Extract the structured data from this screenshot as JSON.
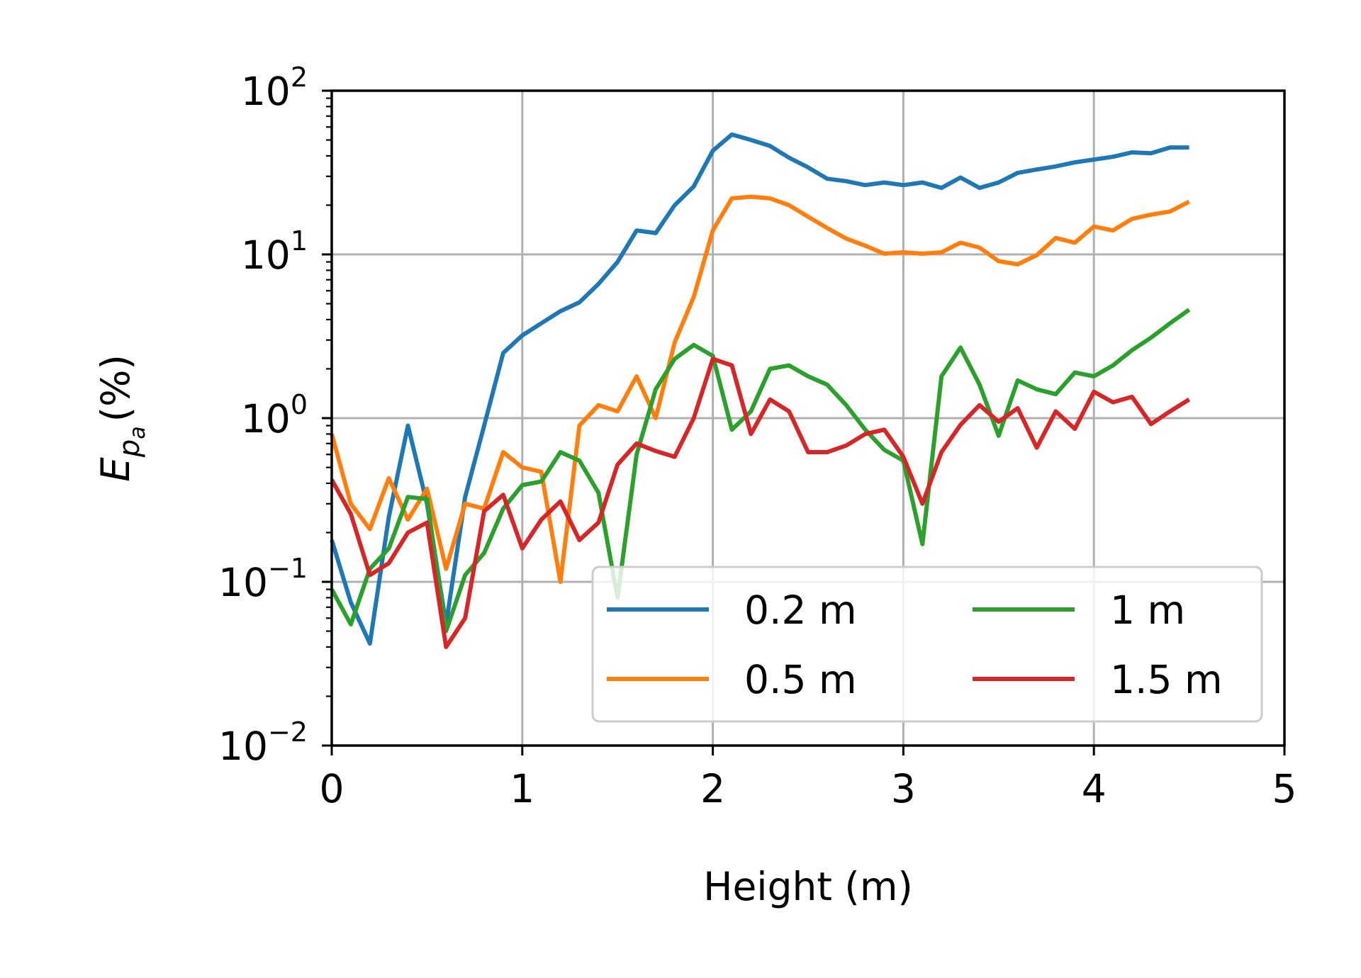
{
  "chart_data": {
    "type": "line",
    "xlabel": "Height (m)",
    "ylabel": {
      "base": "E",
      "sub": "p",
      "subsub": "a",
      "unit": "(%)"
    },
    "xlim": [
      0,
      5
    ],
    "ylim": [
      0.01,
      100
    ],
    "yscale": "log",
    "grid": true,
    "x_ticks": [
      "0",
      "1",
      "2",
      "3",
      "4",
      "5"
    ],
    "y_ticks": [
      {
        "base": "10",
        "exp": "−2",
        "value": 0.01
      },
      {
        "base": "10",
        "exp": "−1",
        "value": 0.1
      },
      {
        "base": "10",
        "exp": "0",
        "value": 1
      },
      {
        "base": "10",
        "exp": "1",
        "value": 10
      },
      {
        "base": "10",
        "exp": "2",
        "value": 100
      }
    ],
    "legend": {
      "placement": "lower-right",
      "columns": 2
    },
    "x": [
      0,
      0.1,
      0.2,
      0.3,
      0.4,
      0.5,
      0.6,
      0.7,
      0.8,
      0.9,
      1.0,
      1.1,
      1.2,
      1.3,
      1.4,
      1.5,
      1.6,
      1.7,
      1.8,
      1.9,
      2.0,
      2.1,
      2.2,
      2.3,
      2.4,
      2.5,
      2.6,
      2.7,
      2.8,
      2.9,
      3.0,
      3.1,
      3.2,
      3.3,
      3.4,
      3.5,
      3.6,
      3.7,
      3.8,
      3.9,
      4.0,
      4.1,
      4.2,
      4.3,
      4.4,
      4.5
    ],
    "series": [
      {
        "name": "0.2 m",
        "color": "#1f77b4",
        "values": [
          0.18,
          0.075,
          0.042,
          0.25,
          0.9,
          0.3,
          0.055,
          0.33,
          0.9,
          2.5,
          3.2,
          3.8,
          4.5,
          5.1,
          6.6,
          9.0,
          14,
          13.5,
          20,
          26,
          43,
          54,
          50,
          46,
          39,
          34,
          29,
          28,
          26.5,
          27.5,
          26.5,
          27.5,
          25.5,
          29.5,
          25.5,
          27.5,
          31.5,
          33,
          34.5,
          36.5,
          38,
          39.5,
          42,
          41.5,
          45,
          45
        ]
      },
      {
        "name": "0.5 m",
        "color": "#ff7f0e",
        "values": [
          0.8,
          0.3,
          0.21,
          0.43,
          0.24,
          0.37,
          0.12,
          0.3,
          0.28,
          0.62,
          0.5,
          0.47,
          0.1,
          0.9,
          1.2,
          1.1,
          1.8,
          1.0,
          2.9,
          5.5,
          14,
          22,
          22.5,
          22,
          20,
          17,
          14.5,
          12.5,
          11.3,
          10.1,
          10.3,
          10.1,
          10.3,
          11.8,
          11,
          9.1,
          8.7,
          9.9,
          12.6,
          11.8,
          14.8,
          14,
          16.5,
          17.5,
          18.3,
          21
        ]
      },
      {
        "name": "1 m",
        "color": "#2ca02c",
        "values": [
          0.09,
          0.055,
          0.12,
          0.16,
          0.33,
          0.32,
          0.05,
          0.11,
          0.15,
          0.28,
          0.39,
          0.41,
          0.62,
          0.55,
          0.35,
          0.08,
          0.6,
          1.5,
          2.3,
          2.8,
          2.4,
          0.85,
          1.1,
          2.0,
          2.1,
          1.8,
          1.6,
          1.2,
          0.85,
          0.64,
          0.55,
          0.17,
          1.8,
          2.7,
          1.6,
          0.78,
          1.7,
          1.5,
          1.4,
          1.9,
          1.8,
          2.1,
          2.6,
          3.1,
          3.8,
          4.6
        ]
      },
      {
        "name": "1.5 m",
        "color": "#d62728",
        "values": [
          0.42,
          0.26,
          0.11,
          0.13,
          0.2,
          0.23,
          0.04,
          0.06,
          0.27,
          0.34,
          0.16,
          0.24,
          0.31,
          0.18,
          0.23,
          0.52,
          0.7,
          0.63,
          0.58,
          1.0,
          2.3,
          2.1,
          0.8,
          1.3,
          1.1,
          0.62,
          0.62,
          0.68,
          0.8,
          0.85,
          0.58,
          0.3,
          0.62,
          0.91,
          1.2,
          0.95,
          1.15,
          0.66,
          1.1,
          0.86,
          1.45,
          1.25,
          1.35,
          0.92,
          1.1,
          1.3
        ]
      }
    ]
  }
}
